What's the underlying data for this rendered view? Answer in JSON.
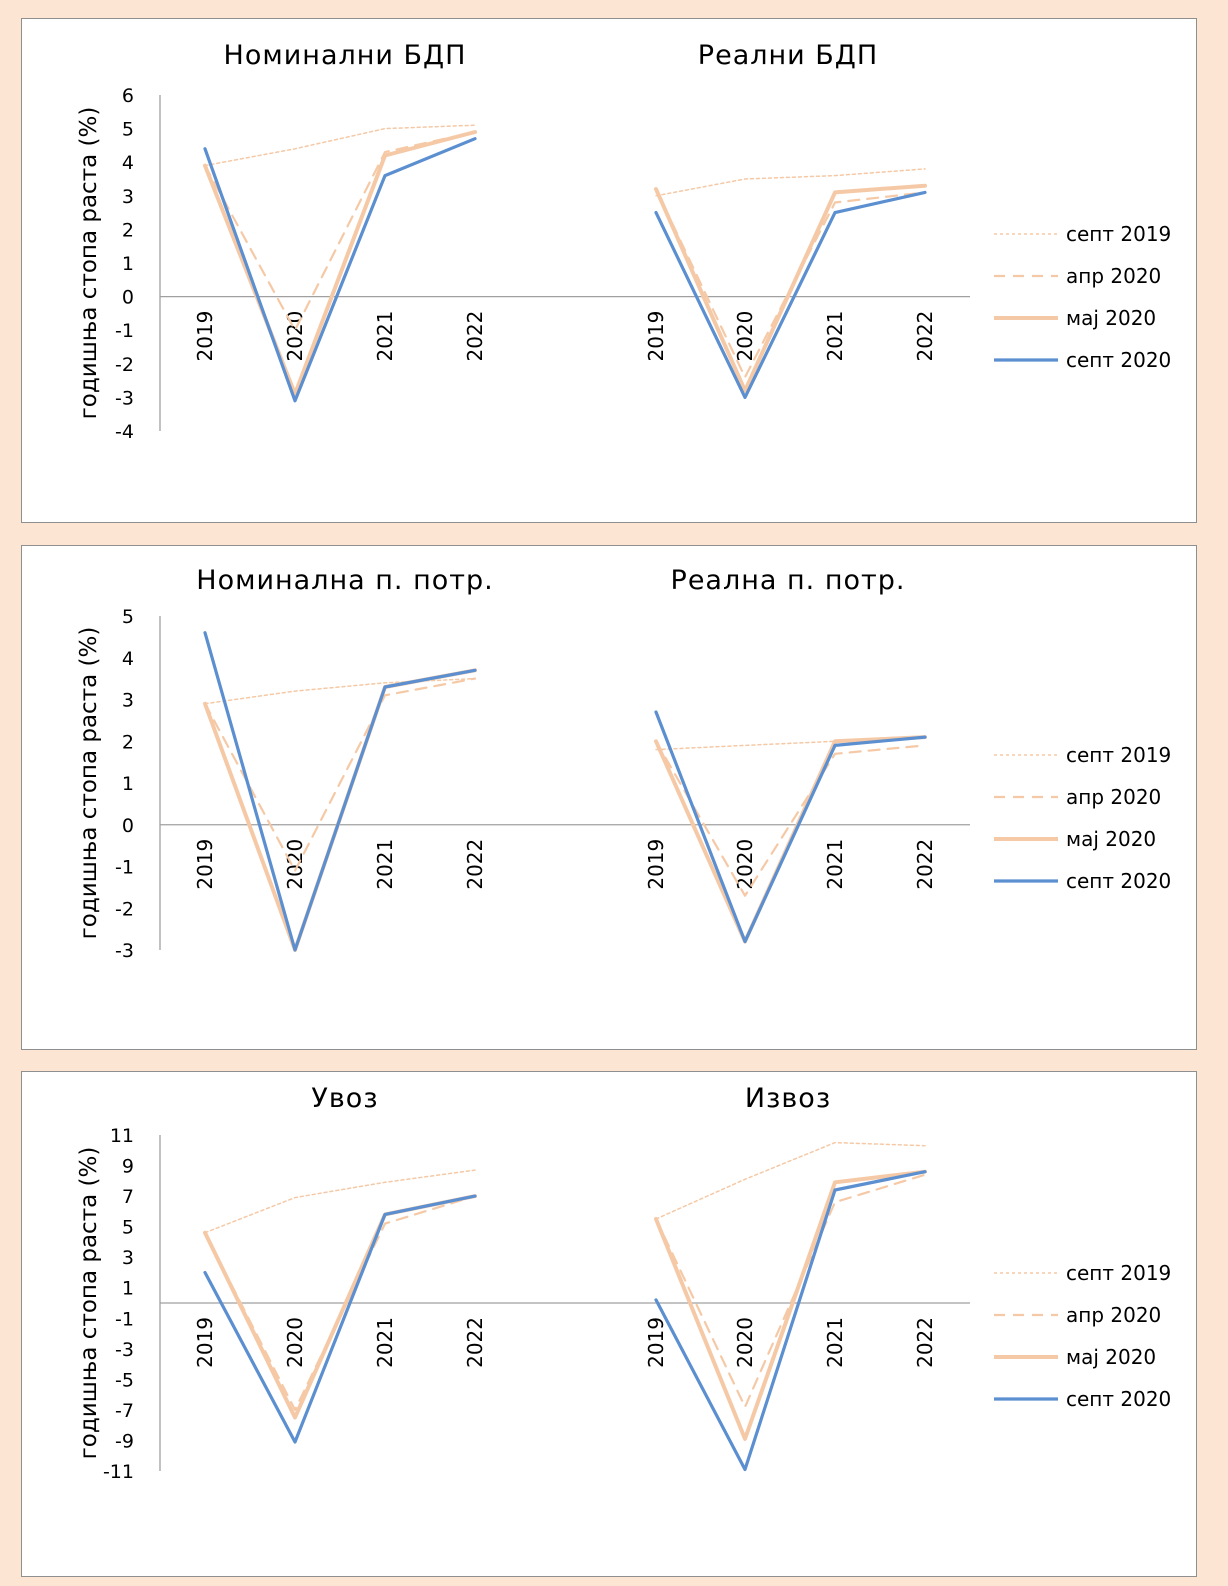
{
  "colors": {
    "sept2019": "#f5c9a6",
    "apr2020": "#f5c9a6",
    "maj2020": "#f5c9a6",
    "sept2020": "#5b8fd0",
    "axis": "#a0a0a0"
  },
  "legend": [
    {
      "key": "sept2019",
      "label": "септ 2019",
      "style": "dotted"
    },
    {
      "key": "apr2020",
      "label": "апр 2020",
      "style": "dashed"
    },
    {
      "key": "maj2020",
      "label": "мај 2020",
      "style": "solid-thick"
    },
    {
      "key": "sept2020",
      "label": "септ 2020",
      "style": "solid"
    }
  ],
  "chart_data": [
    {
      "type": "line",
      "panel": 1,
      "ylabel": "годишња стопа раста (%)",
      "ylim": [
        -4,
        6
      ],
      "yticks": [
        "6",
        "5",
        "4",
        "3",
        "2",
        "1",
        "0",
        "-1",
        "-2",
        "-3",
        "-4"
      ],
      "groups": [
        {
          "title": "Номинални БДП",
          "categories": [
            "2019",
            "2020",
            "2021",
            "2022"
          ],
          "series": [
            {
              "key": "sept2019",
              "values": [
                3.9,
                4.4,
                5.0,
                5.1
              ]
            },
            {
              "key": "apr2020",
              "values": [
                3.9,
                -1.0,
                4.3,
                4.9
              ]
            },
            {
              "key": "maj2020",
              "values": [
                3.9,
                -2.9,
                4.2,
                4.9
              ]
            },
            {
              "key": "sept2020",
              "values": [
                4.4,
                -3.1,
                3.6,
                4.7
              ]
            }
          ]
        },
        {
          "title": "Реални БДП",
          "categories": [
            "2019",
            "2020",
            "2021",
            "2022"
          ],
          "series": [
            {
              "key": "sept2019",
              "values": [
                3.0,
                3.5,
                3.6,
                3.8
              ]
            },
            {
              "key": "apr2020",
              "values": [
                3.2,
                -2.4,
                2.8,
                3.1
              ]
            },
            {
              "key": "maj2020",
              "values": [
                3.2,
                -2.8,
                3.1,
                3.3
              ]
            },
            {
              "key": "sept2020",
              "values": [
                2.5,
                -3.0,
                2.5,
                3.1
              ]
            }
          ]
        }
      ]
    },
    {
      "type": "line",
      "panel": 2,
      "ylabel": "годишња стопа раста (%)",
      "ylim": [
        -3,
        5
      ],
      "yticks": [
        "5",
        "4",
        "3",
        "2",
        "1",
        "0",
        "-1",
        "-2",
        "-3"
      ],
      "groups": [
        {
          "title": "Номинална п. потр.",
          "categories": [
            "2019",
            "2020",
            "2021",
            "2022"
          ],
          "series": [
            {
              "key": "sept2019",
              "values": [
                2.9,
                3.2,
                3.4,
                3.5
              ]
            },
            {
              "key": "apr2020",
              "values": [
                2.9,
                -1.1,
                3.1,
                3.5
              ]
            },
            {
              "key": "maj2020",
              "values": [
                2.9,
                -3.0,
                3.3,
                3.7
              ]
            },
            {
              "key": "sept2020",
              "values": [
                4.6,
                -3.0,
                3.3,
                3.7
              ]
            }
          ]
        },
        {
          "title": "Реална п. потр.",
          "categories": [
            "2019",
            "2020",
            "2021",
            "2022"
          ],
          "series": [
            {
              "key": "sept2019",
              "values": [
                1.8,
                1.9,
                2.0,
                2.1
              ]
            },
            {
              "key": "apr2020",
              "values": [
                2.0,
                -1.7,
                1.7,
                1.9
              ]
            },
            {
              "key": "maj2020",
              "values": [
                2.0,
                -2.8,
                2.0,
                2.1
              ]
            },
            {
              "key": "sept2020",
              "values": [
                2.7,
                -2.8,
                1.9,
                2.1
              ]
            }
          ]
        }
      ]
    },
    {
      "type": "line",
      "panel": 3,
      "ylabel": "годишња стопа раста (%)",
      "ylim": [
        -11,
        11
      ],
      "yticks": [
        "11",
        "9",
        "7",
        "5",
        "3",
        "1",
        "-1",
        "-3",
        "-5",
        "-7",
        "-9",
        "-11"
      ],
      "groups": [
        {
          "title": "Увоз",
          "categories": [
            "2019",
            "2020",
            "2021",
            "2022"
          ],
          "series": [
            {
              "key": "sept2019",
              "values": [
                4.6,
                6.9,
                7.9,
                8.7
              ]
            },
            {
              "key": "apr2020",
              "values": [
                4.6,
                -7.0,
                5.2,
                7.0
              ]
            },
            {
              "key": "maj2020",
              "values": [
                4.6,
                -7.5,
                5.8,
                7.0
              ]
            },
            {
              "key": "sept2020",
              "values": [
                2.0,
                -9.1,
                5.8,
                7.0
              ]
            }
          ]
        },
        {
          "title": "Извоз",
          "categories": [
            "2019",
            "2020",
            "2021",
            "2022"
          ],
          "series": [
            {
              "key": "sept2019",
              "values": [
                5.5,
                8.1,
                10.5,
                10.3
              ]
            },
            {
              "key": "apr2020",
              "values": [
                5.5,
                -6.8,
                6.6,
                8.4
              ]
            },
            {
              "key": "maj2020",
              "values": [
                5.5,
                -8.9,
                7.9,
                8.6
              ]
            },
            {
              "key": "sept2020",
              "values": [
                0.2,
                -10.9,
                7.4,
                8.6
              ]
            }
          ]
        }
      ]
    }
  ]
}
